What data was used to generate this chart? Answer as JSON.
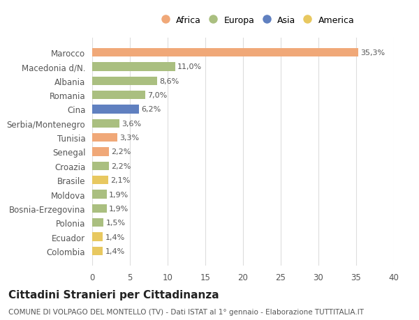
{
  "countries": [
    "Marocco",
    "Macedonia d/N.",
    "Albania",
    "Romania",
    "Cina",
    "Serbia/Montenegro",
    "Tunisia",
    "Senegal",
    "Croazia",
    "Brasile",
    "Moldova",
    "Bosnia-Erzegovina",
    "Polonia",
    "Ecuador",
    "Colombia"
  ],
  "values": [
    35.3,
    11.0,
    8.6,
    7.0,
    6.2,
    3.6,
    3.3,
    2.2,
    2.2,
    2.1,
    1.9,
    1.9,
    1.5,
    1.4,
    1.4
  ],
  "labels": [
    "35,3%",
    "11,0%",
    "8,6%",
    "7,0%",
    "6,2%",
    "3,6%",
    "3,3%",
    "2,2%",
    "2,2%",
    "2,1%",
    "1,9%",
    "1,9%",
    "1,5%",
    "1,4%",
    "1,4%"
  ],
  "continents": [
    "Africa",
    "Europa",
    "Europa",
    "Europa",
    "Asia",
    "Europa",
    "Africa",
    "Africa",
    "Europa",
    "America",
    "Europa",
    "Europa",
    "Europa",
    "America",
    "America"
  ],
  "colors": {
    "Africa": "#F0A878",
    "Europa": "#AABF80",
    "Asia": "#6080C0",
    "America": "#E8C860"
  },
  "legend_order": [
    "Africa",
    "Europa",
    "Asia",
    "America"
  ],
  "title": "Cittadini Stranieri per Cittadinanza",
  "subtitle": "COMUNE DI VOLPAGO DEL MONTELLO (TV) - Dati ISTAT al 1° gennaio - Elaborazione TUTTITALIA.IT",
  "xlim": [
    0,
    40
  ],
  "xticks": [
    0,
    5,
    10,
    15,
    20,
    25,
    30,
    35,
    40
  ],
  "background_color": "#ffffff",
  "grid_color": "#dddddd"
}
